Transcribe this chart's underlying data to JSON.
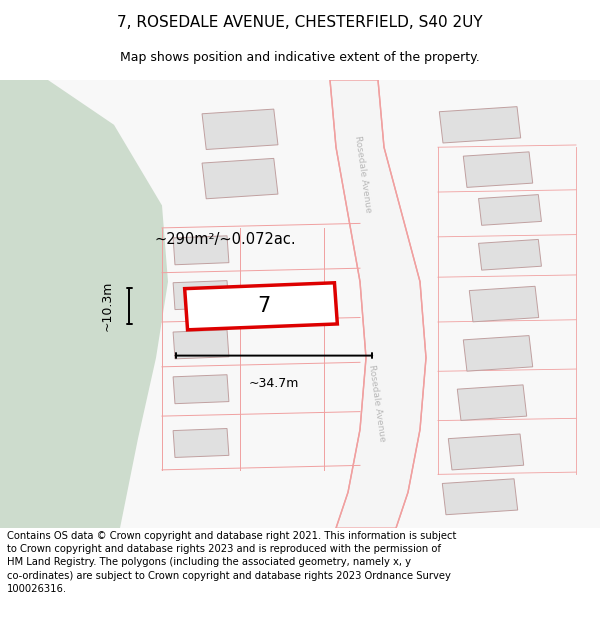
{
  "title": "7, ROSEDALE AVENUE, CHESTERFIELD, S40 2UY",
  "subtitle": "Map shows position and indicative extent of the property.",
  "footer": "Contains OS data © Crown copyright and database right 2021. This information is subject\nto Crown copyright and database rights 2023 and is reproduced with the permission of\nHM Land Registry. The polygons (including the associated geometry, namely x, y\nco-ordinates) are subject to Crown copyright and database rights 2023 Ordnance Survey\n100026316.",
  "bg_color": "#ffffff",
  "map_bg": "#f8f8f8",
  "green_color": "#cddccd",
  "road_fill": "#f5f5f5",
  "road_edge": "#f0a0a0",
  "bld_fill": "#e0e0e0",
  "bld_edge": "#c0a0a0",
  "highlight_fill": "#ffffff",
  "highlight_edge": "#dd0000",
  "highlight_lw": 2.5,
  "road_label_color": "#b8b8b8",
  "area_text": "~290m²/~0.072ac.",
  "dim_width": "~34.7m",
  "dim_height": "~10.3m",
  "plot_number": "7",
  "title_fontsize": 11,
  "subtitle_fontsize": 9,
  "footer_fontsize": 7.2,
  "anno_fontsize": 11,
  "dim_fontsize": 9
}
